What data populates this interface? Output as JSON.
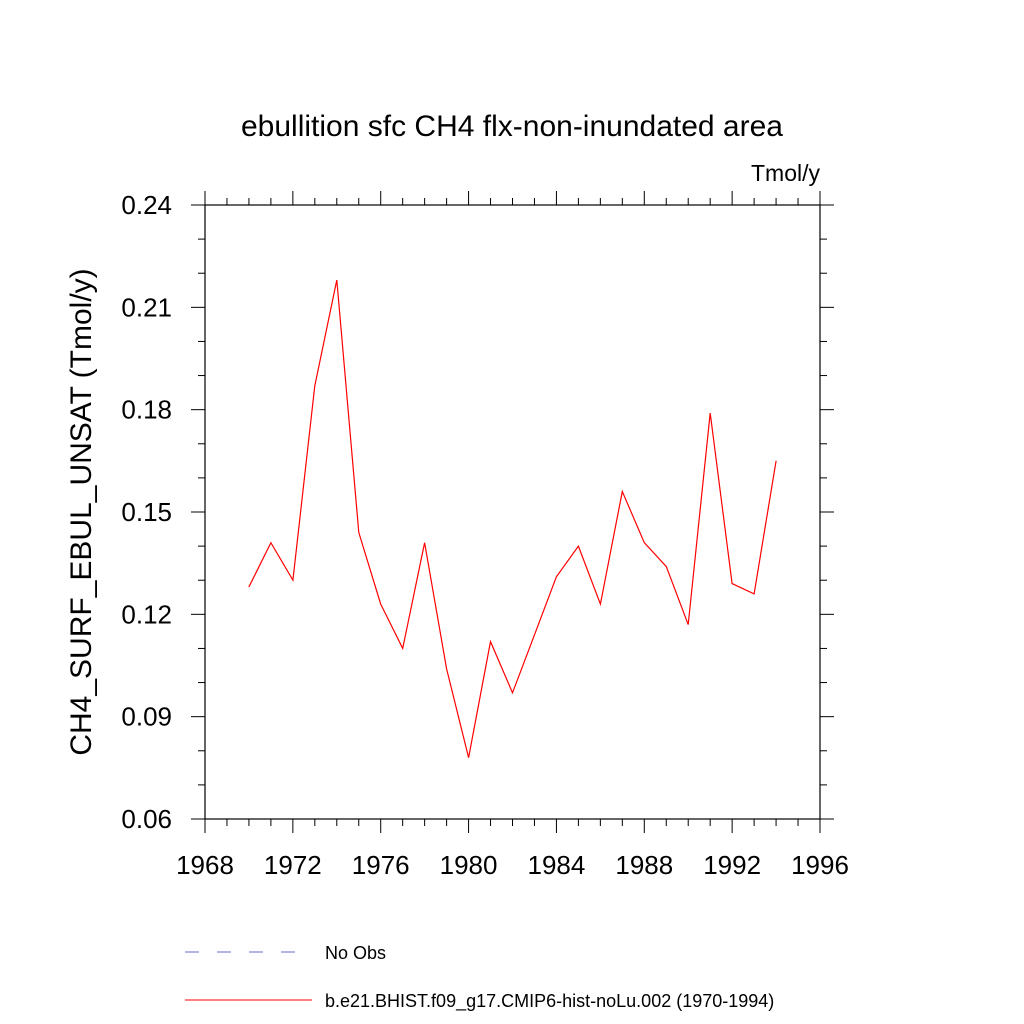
{
  "chart_data": {
    "type": "line",
    "title": "ebullition sfc CH4 flx-non-inundated area",
    "units_label": "Tmol/y",
    "ylabel": "CH4_SURF_EBUL_UNSAT  (Tmol/y)",
    "xlabel": "",
    "xlim": [
      1968,
      1996
    ],
    "ylim": [
      0.06,
      0.24
    ],
    "x_ticks": [
      1968,
      1972,
      1976,
      1980,
      1984,
      1988,
      1992,
      1996
    ],
    "x_tick_labels": [
      "1968",
      "1972",
      "1976",
      "1980",
      "1984",
      "1988",
      "1992",
      "1996"
    ],
    "y_ticks": [
      0.06,
      0.09,
      0.12,
      0.15,
      0.18,
      0.21,
      0.24
    ],
    "y_tick_labels": [
      "0.06",
      "0.09",
      "0.12",
      "0.15",
      "0.18",
      "0.21",
      "0.24"
    ],
    "grid": false,
    "legend_position": "bottom",
    "legend": [
      {
        "name": "No Obs",
        "color": "#6a6ad0",
        "style": "dashed"
      },
      {
        "name": "b.e21.BHIST.f09_g17.CMIP6-hist-noLu.002 (1970-1994)",
        "color": "#ff0000",
        "style": "solid"
      }
    ],
    "series": [
      {
        "name": "b.e21.BHIST.f09_g17.CMIP6-hist-noLu.002 (1970-1994)",
        "color": "#ff0000",
        "x": [
          1970,
          1971,
          1972,
          1973,
          1974,
          1975,
          1976,
          1977,
          1978,
          1979,
          1980,
          1981,
          1982,
          1983,
          1984,
          1985,
          1986,
          1987,
          1988,
          1989,
          1990,
          1991,
          1992,
          1993,
          1994
        ],
        "y": [
          0.128,
          0.141,
          0.13,
          0.187,
          0.218,
          0.144,
          0.123,
          0.11,
          0.141,
          0.104,
          0.078,
          0.112,
          0.097,
          0.114,
          0.131,
          0.14,
          0.123,
          0.156,
          0.141,
          0.134,
          0.117,
          0.179,
          0.129,
          0.126,
          0.165
        ]
      }
    ]
  }
}
